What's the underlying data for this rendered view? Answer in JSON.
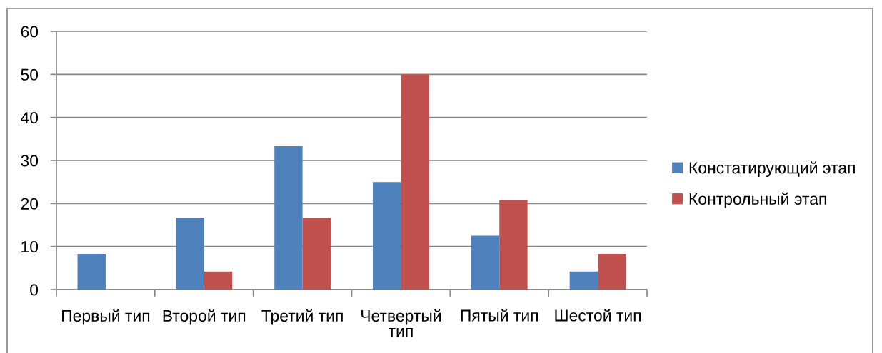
{
  "chart_data": {
    "type": "bar",
    "categories": [
      "Первый тип",
      "Второй тип",
      "Третий тип",
      "Четвертый\nтип",
      "Пятый тип",
      "Шестой тип"
    ],
    "series": [
      {
        "name": "Констатирующий этап",
        "color": "#4f81bd",
        "values": [
          8.3,
          16.7,
          33.3,
          25,
          12.5,
          4.2
        ]
      },
      {
        "name": "Контрольный этап",
        "color": "#c0504d",
        "values": [
          0,
          4.2,
          16.7,
          50,
          20.8,
          8.3
        ]
      }
    ],
    "ylim": [
      0,
      60
    ],
    "yticks": [
      0,
      10,
      20,
      30,
      40,
      50,
      60
    ],
    "grid": "y",
    "legend": "right"
  }
}
